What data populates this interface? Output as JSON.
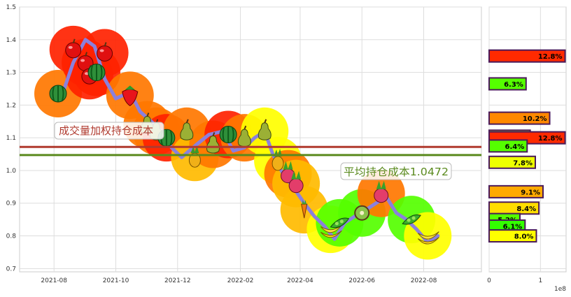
{
  "chart_data": [
    {
      "type": "line",
      "title": "",
      "xlabel": "",
      "ylabel": "",
      "ylim": [
        0.69,
        1.5
      ],
      "grid": true,
      "x_ticks": [
        "2021-08",
        "2021-10",
        "2021-12",
        "2022-02",
        "2022-04",
        "2022-06",
        "2022-08"
      ],
      "x_range": [
        "2021-06-28",
        "2022-09-27"
      ],
      "y_ticks": [
        "0.7",
        "0.8",
        "0.9",
        "1.0",
        "1.1",
        "1.2",
        "1.3",
        "1.4",
        "1.5"
      ],
      "series": [
        {
          "color": "#8b80dd",
          "x": [
            "2021-08-10",
            "2021-08-20",
            "2021-09-01",
            "2021-09-10",
            "2021-09-20",
            "2021-10-01",
            "2021-10-15",
            "2021-10-25",
            "2021-11-05",
            "2021-11-15",
            "2021-11-25",
            "2021-12-05",
            "2021-12-20",
            "2022-01-01",
            "2022-01-15",
            "2022-01-25",
            "2022-02-05",
            "2022-02-15",
            "2022-02-25",
            "2022-03-05",
            "2022-03-15",
            "2022-03-25",
            "2022-04-05",
            "2022-04-15",
            "2022-04-25",
            "2022-05-05",
            "2022-05-15",
            "2022-05-25",
            "2022-06-05",
            "2022-06-15",
            "2022-06-25",
            "2022-07-05",
            "2022-07-15",
            "2022-07-25",
            "2022-08-05",
            "2022-08-15"
          ],
          "values": [
            1.24,
            1.33,
            1.4,
            1.38,
            1.28,
            1.22,
            1.24,
            1.18,
            1.15,
            1.12,
            1.07,
            1.04,
            1.08,
            1.11,
            1.12,
            1.06,
            1.07,
            1.1,
            1.12,
            1.05,
            0.99,
            0.95,
            0.9,
            0.86,
            0.83,
            0.79,
            0.84,
            0.86,
            0.88,
            0.9,
            0.92,
            0.87,
            0.85,
            0.82,
            0.78,
            0.8
          ]
        }
      ],
      "reference_lines": [
        {
          "label": "成交量加权持仓成本",
          "value": 1.072,
          "color": "#b03a2e"
        },
        {
          "label": "平均持仓成本1.0472",
          "value": 1.0472,
          "color": "#5a8a1e"
        }
      ],
      "markers": [
        {
          "date": "2021-08-05",
          "value": 1.235,
          "color": "#ff7700",
          "icon": "watermelon-icon"
        },
        {
          "date": "2021-08-20",
          "value": 1.37,
          "color": "#ff2200",
          "icon": "apple-icon"
        },
        {
          "date": "2021-09-01",
          "value": 1.33,
          "color": "#ff2200",
          "icon": "apple-icon"
        },
        {
          "date": "2021-09-05",
          "value": 1.29,
          "color": "#ff2200",
          "icon": "apple-icon"
        },
        {
          "date": "2021-09-12",
          "value": 1.3,
          "color": "#ff2200",
          "icon": "watermelon-icon"
        },
        {
          "date": "2021-09-20",
          "value": 1.36,
          "color": "#ff2200",
          "icon": "apple-icon"
        },
        {
          "date": "2021-10-15",
          "value": 1.23,
          "color": "#ff7700",
          "icon": "strawberry-icon"
        },
        {
          "date": "2021-11-01",
          "value": 1.14,
          "color": "#ff7700",
          "icon": "pear-icon"
        },
        {
          "date": "2021-11-10",
          "value": 1.12,
          "color": "#ff7700",
          "icon": "pear-icon"
        },
        {
          "date": "2021-11-20",
          "value": 1.1,
          "color": "#ff2200",
          "icon": "watermelon-icon"
        },
        {
          "date": "2021-12-10",
          "value": 1.12,
          "color": "#ff7700",
          "icon": "pear-icon"
        },
        {
          "date": "2021-12-18",
          "value": 1.04,
          "color": "#ffbb00",
          "icon": "pineapple-icon"
        },
        {
          "date": "2022-01-05",
          "value": 1.08,
          "color": "#ff7700",
          "icon": "pear-icon"
        },
        {
          "date": "2022-01-20",
          "value": 1.11,
          "color": "#ff2200",
          "icon": "watermelon-icon"
        },
        {
          "date": "2022-02-05",
          "value": 1.1,
          "color": "#ff7700",
          "icon": "pear-icon"
        },
        {
          "date": "2022-02-25",
          "value": 1.12,
          "color": "#ffff00",
          "icon": "pear-icon"
        },
        {
          "date": "2022-03-10",
          "value": 1.03,
          "color": "#ffff00",
          "icon": "pineapple-icon"
        },
        {
          "date": "2022-03-20",
          "value": 0.99,
          "color": "#ff7700",
          "icon": "radish-icon"
        },
        {
          "date": "2022-03-28",
          "value": 0.96,
          "color": "#ffbb00",
          "icon": "radish-icon"
        },
        {
          "date": "2022-04-05",
          "value": 0.88,
          "color": "#ffbb00",
          "icon": "carrot-icon"
        },
        {
          "date": "2022-05-01",
          "value": 0.82,
          "color": "#ffff00",
          "icon": "banana-icon"
        },
        {
          "date": "2022-05-10",
          "value": 0.84,
          "color": "#55ff00",
          "icon": "peapod-icon"
        },
        {
          "date": "2022-06-01",
          "value": 0.87,
          "color": "#55ff00",
          "icon": "kiwi-icon"
        },
        {
          "date": "2022-06-20",
          "value": 0.93,
          "color": "#ff7700",
          "icon": "radish-icon"
        },
        {
          "date": "2022-07-20",
          "value": 0.85,
          "color": "#55ff00",
          "icon": "peapod-icon"
        },
        {
          "date": "2022-08-05",
          "value": 0.8,
          "color": "#ffff00",
          "icon": "banana-icon"
        }
      ]
    },
    {
      "type": "bar",
      "orientation": "horizontal",
      "xlabel": "",
      "ylabel": "",
      "xlim": [
        0,
        150000000
      ],
      "x_ticks": [
        "0",
        "1"
      ],
      "x_scale_label": "1e8",
      "bars": [
        {
          "label": "12.8%",
          "price": 1.35,
          "value": 148000000,
          "color": "#ff2a00"
        },
        {
          "label": "6.3%",
          "price": 1.265,
          "value": 72000000,
          "color": "#55ff00"
        },
        {
          "label": "10.2%",
          "price": 1.16,
          "value": 118000000,
          "color": "#ff8800"
        },
        {
          "label": "6.9%",
          "price": 1.105,
          "value": 80000000,
          "color": "#bbff00"
        },
        {
          "label": "12.8%",
          "price": 1.1,
          "value": 148000000,
          "color": "#ff2a00"
        },
        {
          "label": "6.4%",
          "price": 1.075,
          "value": 74000000,
          "color": "#55ff00"
        },
        {
          "label": "7.8%",
          "price": 1.025,
          "value": 90000000,
          "color": "#eeff00"
        },
        {
          "label": "9.1%",
          "price": 0.935,
          "value": 105000000,
          "color": "#ffaa00"
        },
        {
          "label": "8.4%",
          "price": 0.885,
          "value": 97000000,
          "color": "#ffdd00"
        },
        {
          "label": "5.2%",
          "price": 0.85,
          "value": 60000000,
          "color": "#55ff00"
        },
        {
          "label": "6.1%",
          "price": 0.83,
          "value": 70000000,
          "color": "#33ff00"
        },
        {
          "label": "8.0%",
          "price": 0.8,
          "value": 92000000,
          "color": "#ffff00"
        }
      ]
    }
  ]
}
